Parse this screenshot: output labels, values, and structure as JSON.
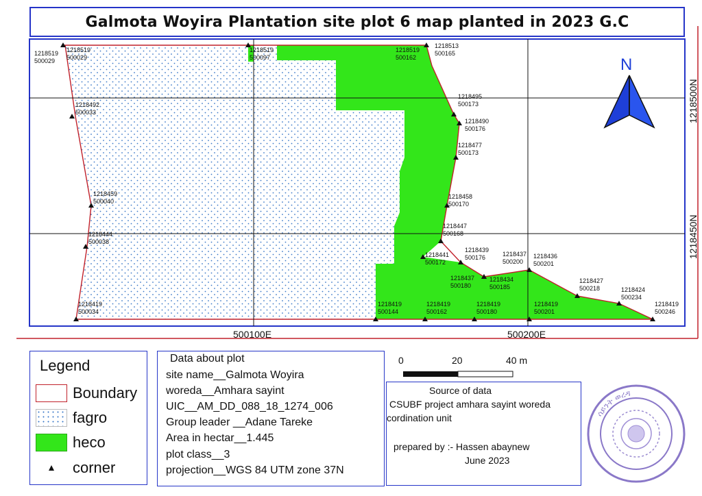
{
  "title": "Galmota Woyira Plantation site plot 6 map planted in 2023 G.C",
  "grid": {
    "easting_labels": [
      "500100E",
      "500200E"
    ],
    "northing_labels": [
      "1218500N",
      "1218450N"
    ]
  },
  "north_arrow": {
    "label": "N",
    "color": "#1e3fd8"
  },
  "colors": {
    "boundary": "#c0202a",
    "fagro_dot": "#3a78c8",
    "heco": "#33e61a",
    "frame": "#2434c8"
  },
  "corners": [
    {
      "n": "1218519",
      "e": "500029"
    },
    {
      "n": "1218519",
      "e": "500029"
    },
    {
      "n": "1218519",
      "e": "500097"
    },
    {
      "n": "1218519",
      "e": "500162"
    },
    {
      "n": "1218513",
      "e": "500165"
    },
    {
      "n": "1218492",
      "e": "500033"
    },
    {
      "n": "1218495",
      "e": "500173"
    },
    {
      "n": "1218490",
      "e": "500176"
    },
    {
      "n": "1218477",
      "e": "500173"
    },
    {
      "n": "1218459",
      "e": "500040"
    },
    {
      "n": "1218458",
      "e": "500170"
    },
    {
      "n": "1218447",
      "e": "500168"
    },
    {
      "n": "1218444",
      "e": "500038"
    },
    {
      "n": "1218441",
      "e": "500172"
    },
    {
      "n": "1218439",
      "e": "500176"
    },
    {
      "n": "1218437",
      "e": "500200"
    },
    {
      "n": "1218436",
      "e": "500201"
    },
    {
      "n": "1218437",
      "e": "500180"
    },
    {
      "n": "1218434",
      "e": "500185"
    },
    {
      "n": "1218427",
      "e": "500218"
    },
    {
      "n": "1218424",
      "e": "500234"
    },
    {
      "n": "1218419",
      "e": "500034"
    },
    {
      "n": "1218419",
      "e": "500144"
    },
    {
      "n": "1218419",
      "e": "500162"
    },
    {
      "n": "1218419",
      "e": "500180"
    },
    {
      "n": "1218419",
      "e": "500201"
    },
    {
      "n": "1218419",
      "e": "500246"
    }
  ],
  "legend": {
    "title": "Legend",
    "items": [
      {
        "label": "Boundary",
        "kind": "boundary"
      },
      {
        "label": "fagro",
        "kind": "fagro"
      },
      {
        "label": "heco",
        "kind": "heco"
      },
      {
        "label": "corner",
        "kind": "corner"
      }
    ]
  },
  "plot_info": {
    "heading": "Data about plot",
    "lines": [
      "site name__Galmota Woyira",
      "woreda__Amhara sayint",
      "UIC__AM_DD_088_18_1274_006",
      "Group leader __Adane Tareke",
      "Area in hectar__1.445",
      "plot class__3",
      "projection__WGS 84 UTM zone 37N"
    ]
  },
  "scale_bar": {
    "ticks": [
      "0",
      "20",
      "40 m"
    ]
  },
  "source": {
    "heading": "Source of data",
    "line1": "CSUBF project amhara sayint woreda",
    "line2": "cordination unit",
    "prepared": "prepared by :- Hassen abaynew",
    "date": "June 2023"
  },
  "stamp": {
    "text": "ሳይንት ወረዳ"
  }
}
